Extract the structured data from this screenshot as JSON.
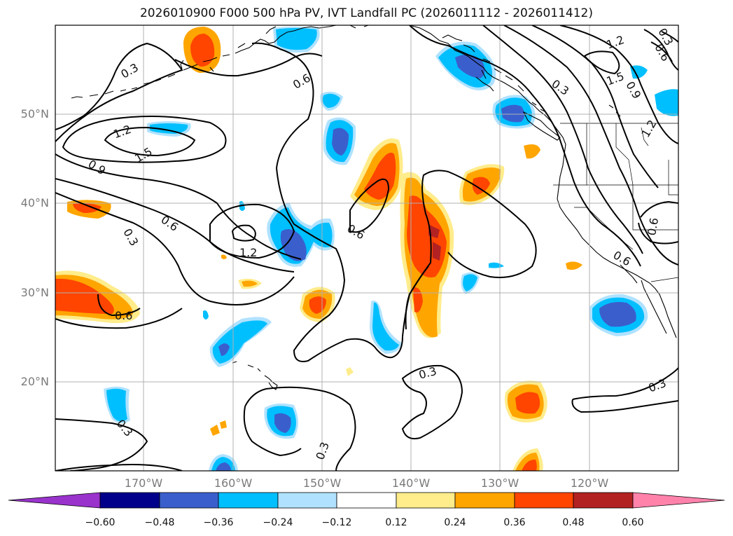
{
  "title": "2026010900 F000 500 hPa PV, IVT Landfall PC (2026011112 - 2026011412)",
  "lat_labels": [
    "50°N",
    "40°N",
    "30°N",
    "20°N"
  ],
  "lon_labels": [
    "170°W",
    "160°W",
    "150°W",
    "140°W",
    "130°W",
    "120°W"
  ],
  "contour_labels": [
    "0.3",
    "0.6",
    "1.2",
    "1.5",
    "0.9",
    "0.6",
    "1.2",
    "0.6",
    "0.3",
    "0.6",
    "0.3",
    "1.2",
    "1.5",
    "0.3",
    "0.9",
    "1.2",
    "0.6",
    "0.6",
    "0.3",
    "0.3",
    "0.3",
    "0.6",
    "0.3"
  ],
  "colorbar": {
    "ticks": [
      "−0.60",
      "−0.48",
      "−0.36",
      "−0.24",
      "−0.12",
      "0.12",
      "0.24",
      "0.36",
      "0.48",
      "0.60"
    ],
    "levels": [
      -0.6,
      -0.48,
      -0.36,
      -0.24,
      -0.12,
      0.12,
      0.24,
      0.36,
      0.48,
      0.6
    ],
    "colors": {
      "lt_neg060": "#9933cc",
      "neg060_neg048": "#00008b",
      "neg048_neg036": "#3a5fcd",
      "neg036_neg024": "#00bfff",
      "neg024_neg012": "#b0e2ff",
      "neg012_012": "#ffffff",
      "p012_024": "#ffec8b",
      "p024_036": "#ffa500",
      "p036_048": "#ff4500",
      "p048_060": "#b22222",
      "gt_060": "#ff82ab"
    }
  }
}
